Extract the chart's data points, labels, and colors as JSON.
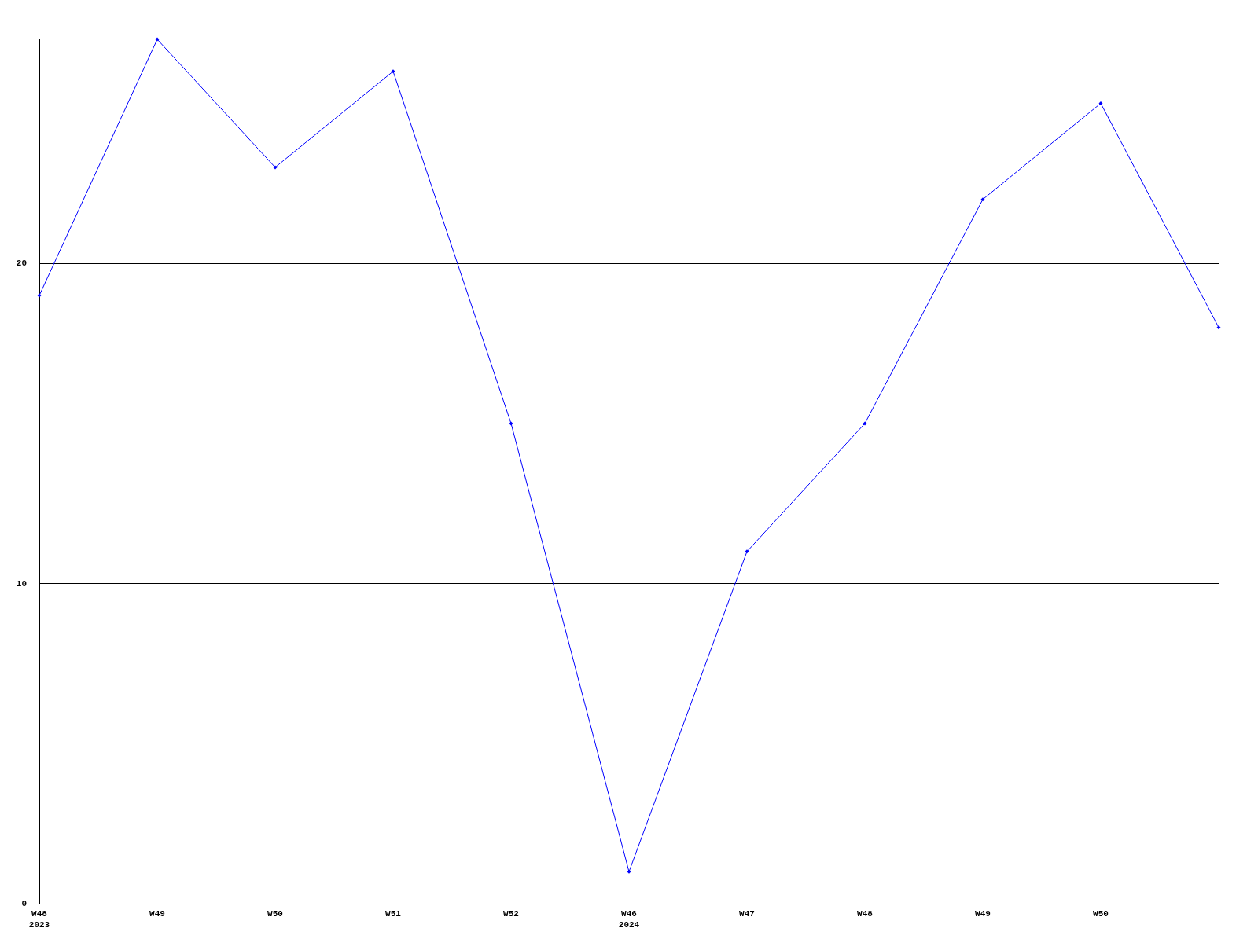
{
  "chart_data": {
    "type": "line",
    "categories": [
      "W48\n2023",
      "W49",
      "W50",
      "W51",
      "W52",
      "W46\n2024",
      "W47",
      "W48",
      "W49",
      "W50",
      null
    ],
    "series": [
      {
        "color": "#0000ff",
        "values": [
          19,
          27,
          23,
          26,
          15,
          1,
          11,
          15,
          22,
          25,
          18
        ]
      }
    ],
    "ylim": [
      0,
      27
    ],
    "yticks": [
      0,
      10,
      20
    ],
    "grid": "y",
    "marker": "diamond",
    "line_style": "solid"
  }
}
